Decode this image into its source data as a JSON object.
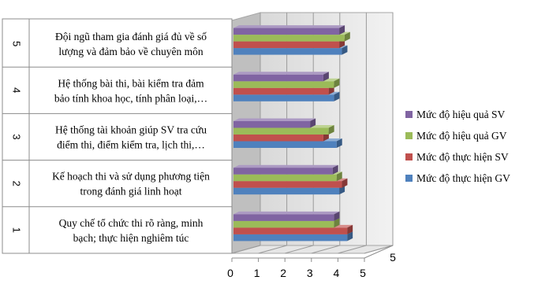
{
  "chart_data": {
    "type": "bar",
    "orientation": "horizontal",
    "three_d": true,
    "categories": [
      {
        "index": "1",
        "lines": [
          "Quy chế tổ chức thi rõ ràng, minh",
          "bạch; thực hiện nghiêm túc"
        ]
      },
      {
        "index": "2",
        "lines": [
          "Kế hoạch thi và sử dụng phương tiện",
          "trong đánh giá linh hoạt"
        ]
      },
      {
        "index": "3",
        "lines": [
          "Hệ thống tài khoản giúp SV tra cứu",
          "điểm thi, điểm kiểm tra, lịch thi,…"
        ]
      },
      {
        "index": "4",
        "lines": [
          "Hệ thống bài thi, bài kiểm tra đảm",
          "bảo tính khoa học, tính phân loại,…"
        ]
      },
      {
        "index": "5",
        "lines": [
          "Đội ngũ tham gia đánh giá đủ về số",
          "lượng và đảm bảo về chuyên môn"
        ]
      }
    ],
    "series": [
      {
        "name": "Mức độ thực hiện GV",
        "color": "#4F81BD",
        "values": [
          4.35,
          4.05,
          3.95,
          3.85,
          4.15
        ]
      },
      {
        "name": "Mức độ thực hiện SV",
        "color": "#C0504D",
        "values": [
          4.35,
          4.15,
          3.45,
          3.65,
          4.05
        ]
      },
      {
        "name": "Mức độ hiệu quả GV",
        "color": "#9BBB59",
        "values": [
          3.85,
          3.95,
          3.65,
          3.85,
          4.25
        ]
      },
      {
        "name": "Mức độ hiệu quả SV",
        "color": "#8064A2",
        "values": [
          3.85,
          3.8,
          2.95,
          3.45,
          4.05
        ]
      }
    ],
    "xlim": [
      0,
      5
    ],
    "xticks": [
      "0",
      "1",
      "2",
      "3",
      "4",
      "5"
    ],
    "grid": true,
    "legend_position": "right",
    "title": "",
    "xlabel": "",
    "ylabel": ""
  }
}
